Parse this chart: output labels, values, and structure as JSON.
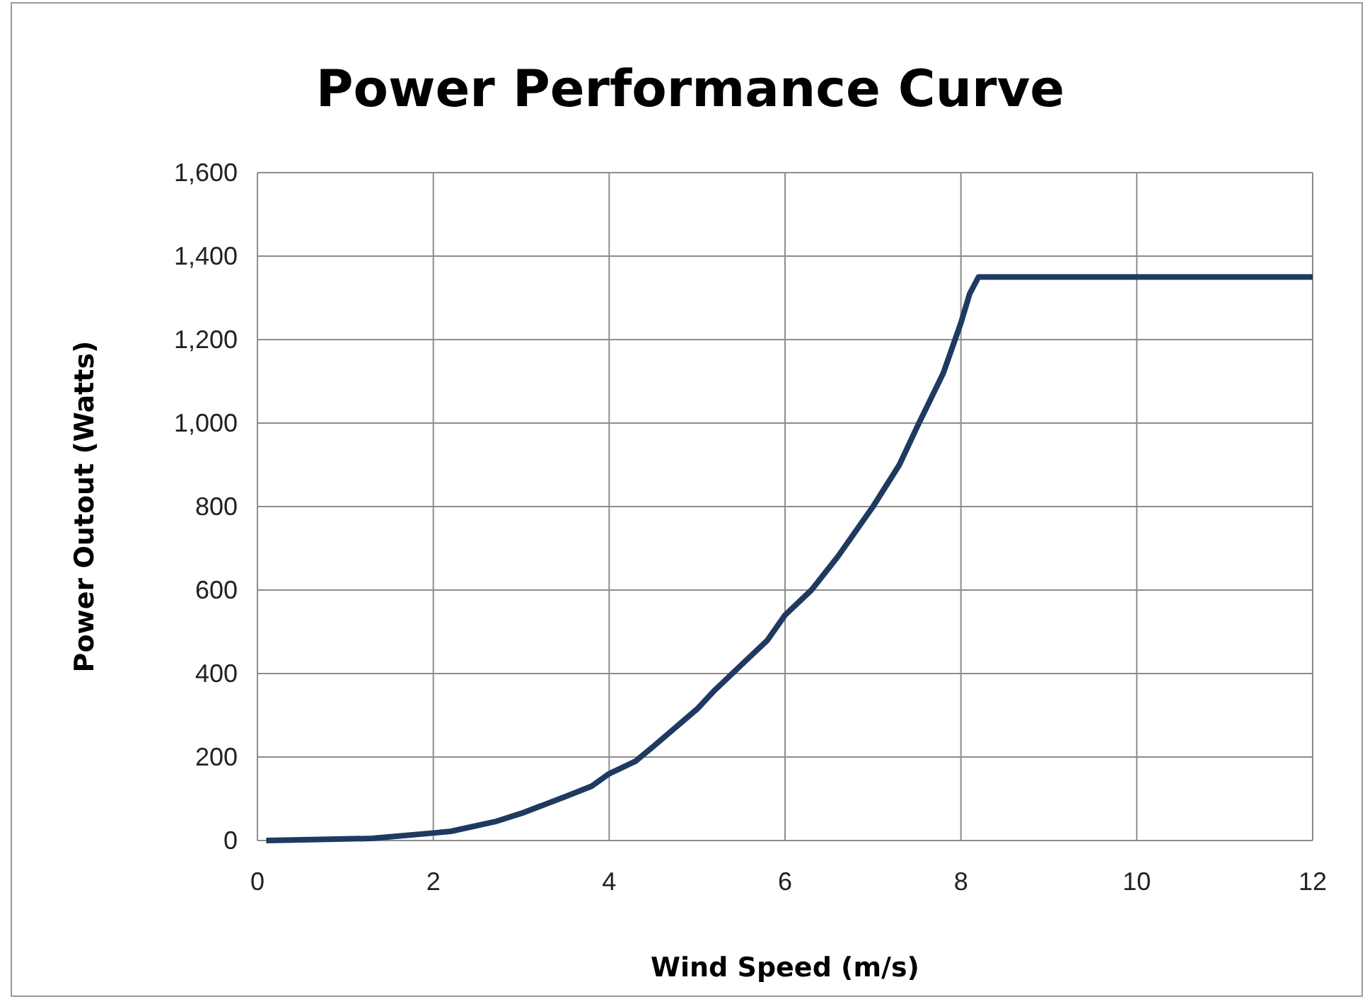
{
  "chart_data": {
    "type": "line",
    "title": "Power Performance Curve",
    "xlabel": "Wind Speed (m/s)",
    "ylabel": "Power Outout (Watts)",
    "x": [
      0.1,
      0.8,
      1.3,
      2,
      2.2,
      2.7,
      3,
      3.5,
      3.8,
      4,
      4.3,
      4.5,
      5,
      5.2,
      5.5,
      5.8,
      6,
      6.3,
      6.6,
      7,
      7.3,
      7.5,
      7.8,
      8,
      8.1,
      8.2,
      12
    ],
    "series": [
      {
        "color": "#1f3a60",
        "values": [
          0,
          3,
          5,
          18,
          22,
          45,
          65,
          105,
          130,
          160,
          190,
          225,
          315,
          360,
          420,
          480,
          540,
          600,
          680,
          800,
          900,
          990,
          1120,
          1240,
          1310,
          1350,
          1350
        ]
      }
    ],
    "xlim": [
      0,
      12
    ],
    "xticks": [
      0,
      2,
      4,
      6,
      8,
      10,
      12
    ],
    "ylim": [
      0,
      1600
    ],
    "yticks": [
      0,
      {
        "value": 200,
        "label": "200"
      },
      {
        "value": 400,
        "label": "400"
      },
      {
        "value": 600,
        "label": "600"
      },
      {
        "value": 800,
        "label": "800"
      },
      {
        "value": 1000,
        "label": "1,000"
      },
      {
        "value": 1200,
        "label": "1,200"
      },
      {
        "value": 1400,
        "label": "1,400"
      },
      {
        "value": 1600,
        "label": "1,600"
      }
    ],
    "grid": true,
    "marker": "none",
    "line_style": "solid"
  }
}
